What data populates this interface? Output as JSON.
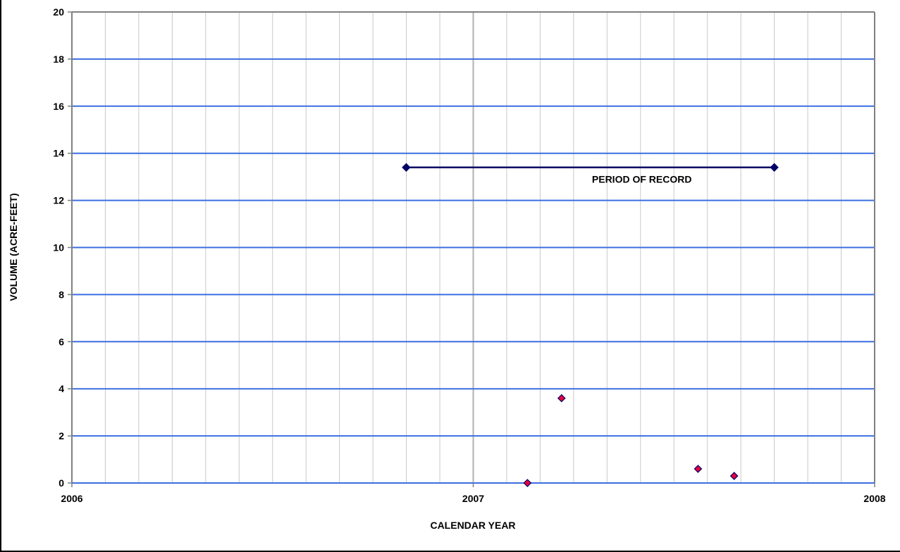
{
  "chart_data": {
    "type": "scatter",
    "title": "",
    "xlabel": "CALENDAR YEAR",
    "ylabel": "VOLUME (ACRE-FEET)",
    "xlim": [
      2006,
      2008
    ],
    "ylim": [
      0,
      20
    ],
    "x_ticks": [
      "2006",
      "2007",
      "2008"
    ],
    "y_ticks": [
      "0",
      "2",
      "4",
      "6",
      "8",
      "10",
      "12",
      "14",
      "16",
      "18",
      "20"
    ],
    "grid": true,
    "series": [
      {
        "name": "PERIOD OF RECORD",
        "type": "line",
        "color": "#000066",
        "points": [
          {
            "x": 2006.833,
            "y": 13.4
          },
          {
            "x": 2007.75,
            "y": 13.4
          }
        ]
      },
      {
        "type": "scatter",
        "color": "#e8003d",
        "points": [
          {
            "x": 2007.135,
            "y": 0.0
          },
          {
            "x": 2007.22,
            "y": 3.6
          },
          {
            "x": 2007.56,
            "y": 0.6
          },
          {
            "x": 2007.65,
            "y": 0.3
          }
        ]
      }
    ],
    "annotations": [
      {
        "text": "PERIOD OF RECORD",
        "x": 2007.42,
        "y": 12.9
      }
    ],
    "colors": {
      "major_grid": "#3a6fe0",
      "minor_grid": "#c8c8c8",
      "year_grid": "#b0b0b0",
      "axis": "#808080"
    }
  }
}
